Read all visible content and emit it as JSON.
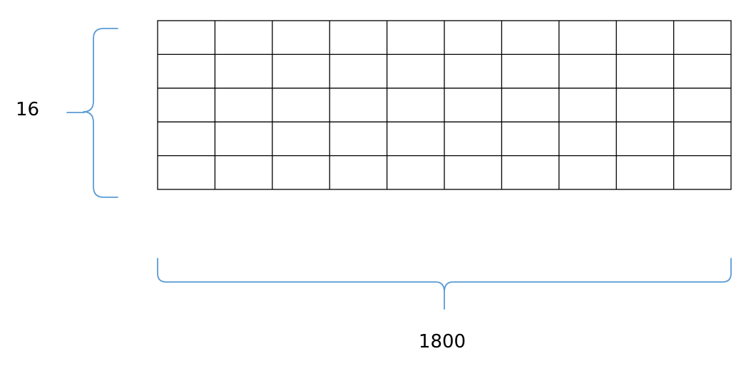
{
  "diagram": {
    "height_label": "16",
    "width_label": "1800",
    "grid": {
      "rows": 5,
      "columns": 10
    },
    "brace_color": "#5b9bd5",
    "grid_line_color": "#000000"
  }
}
